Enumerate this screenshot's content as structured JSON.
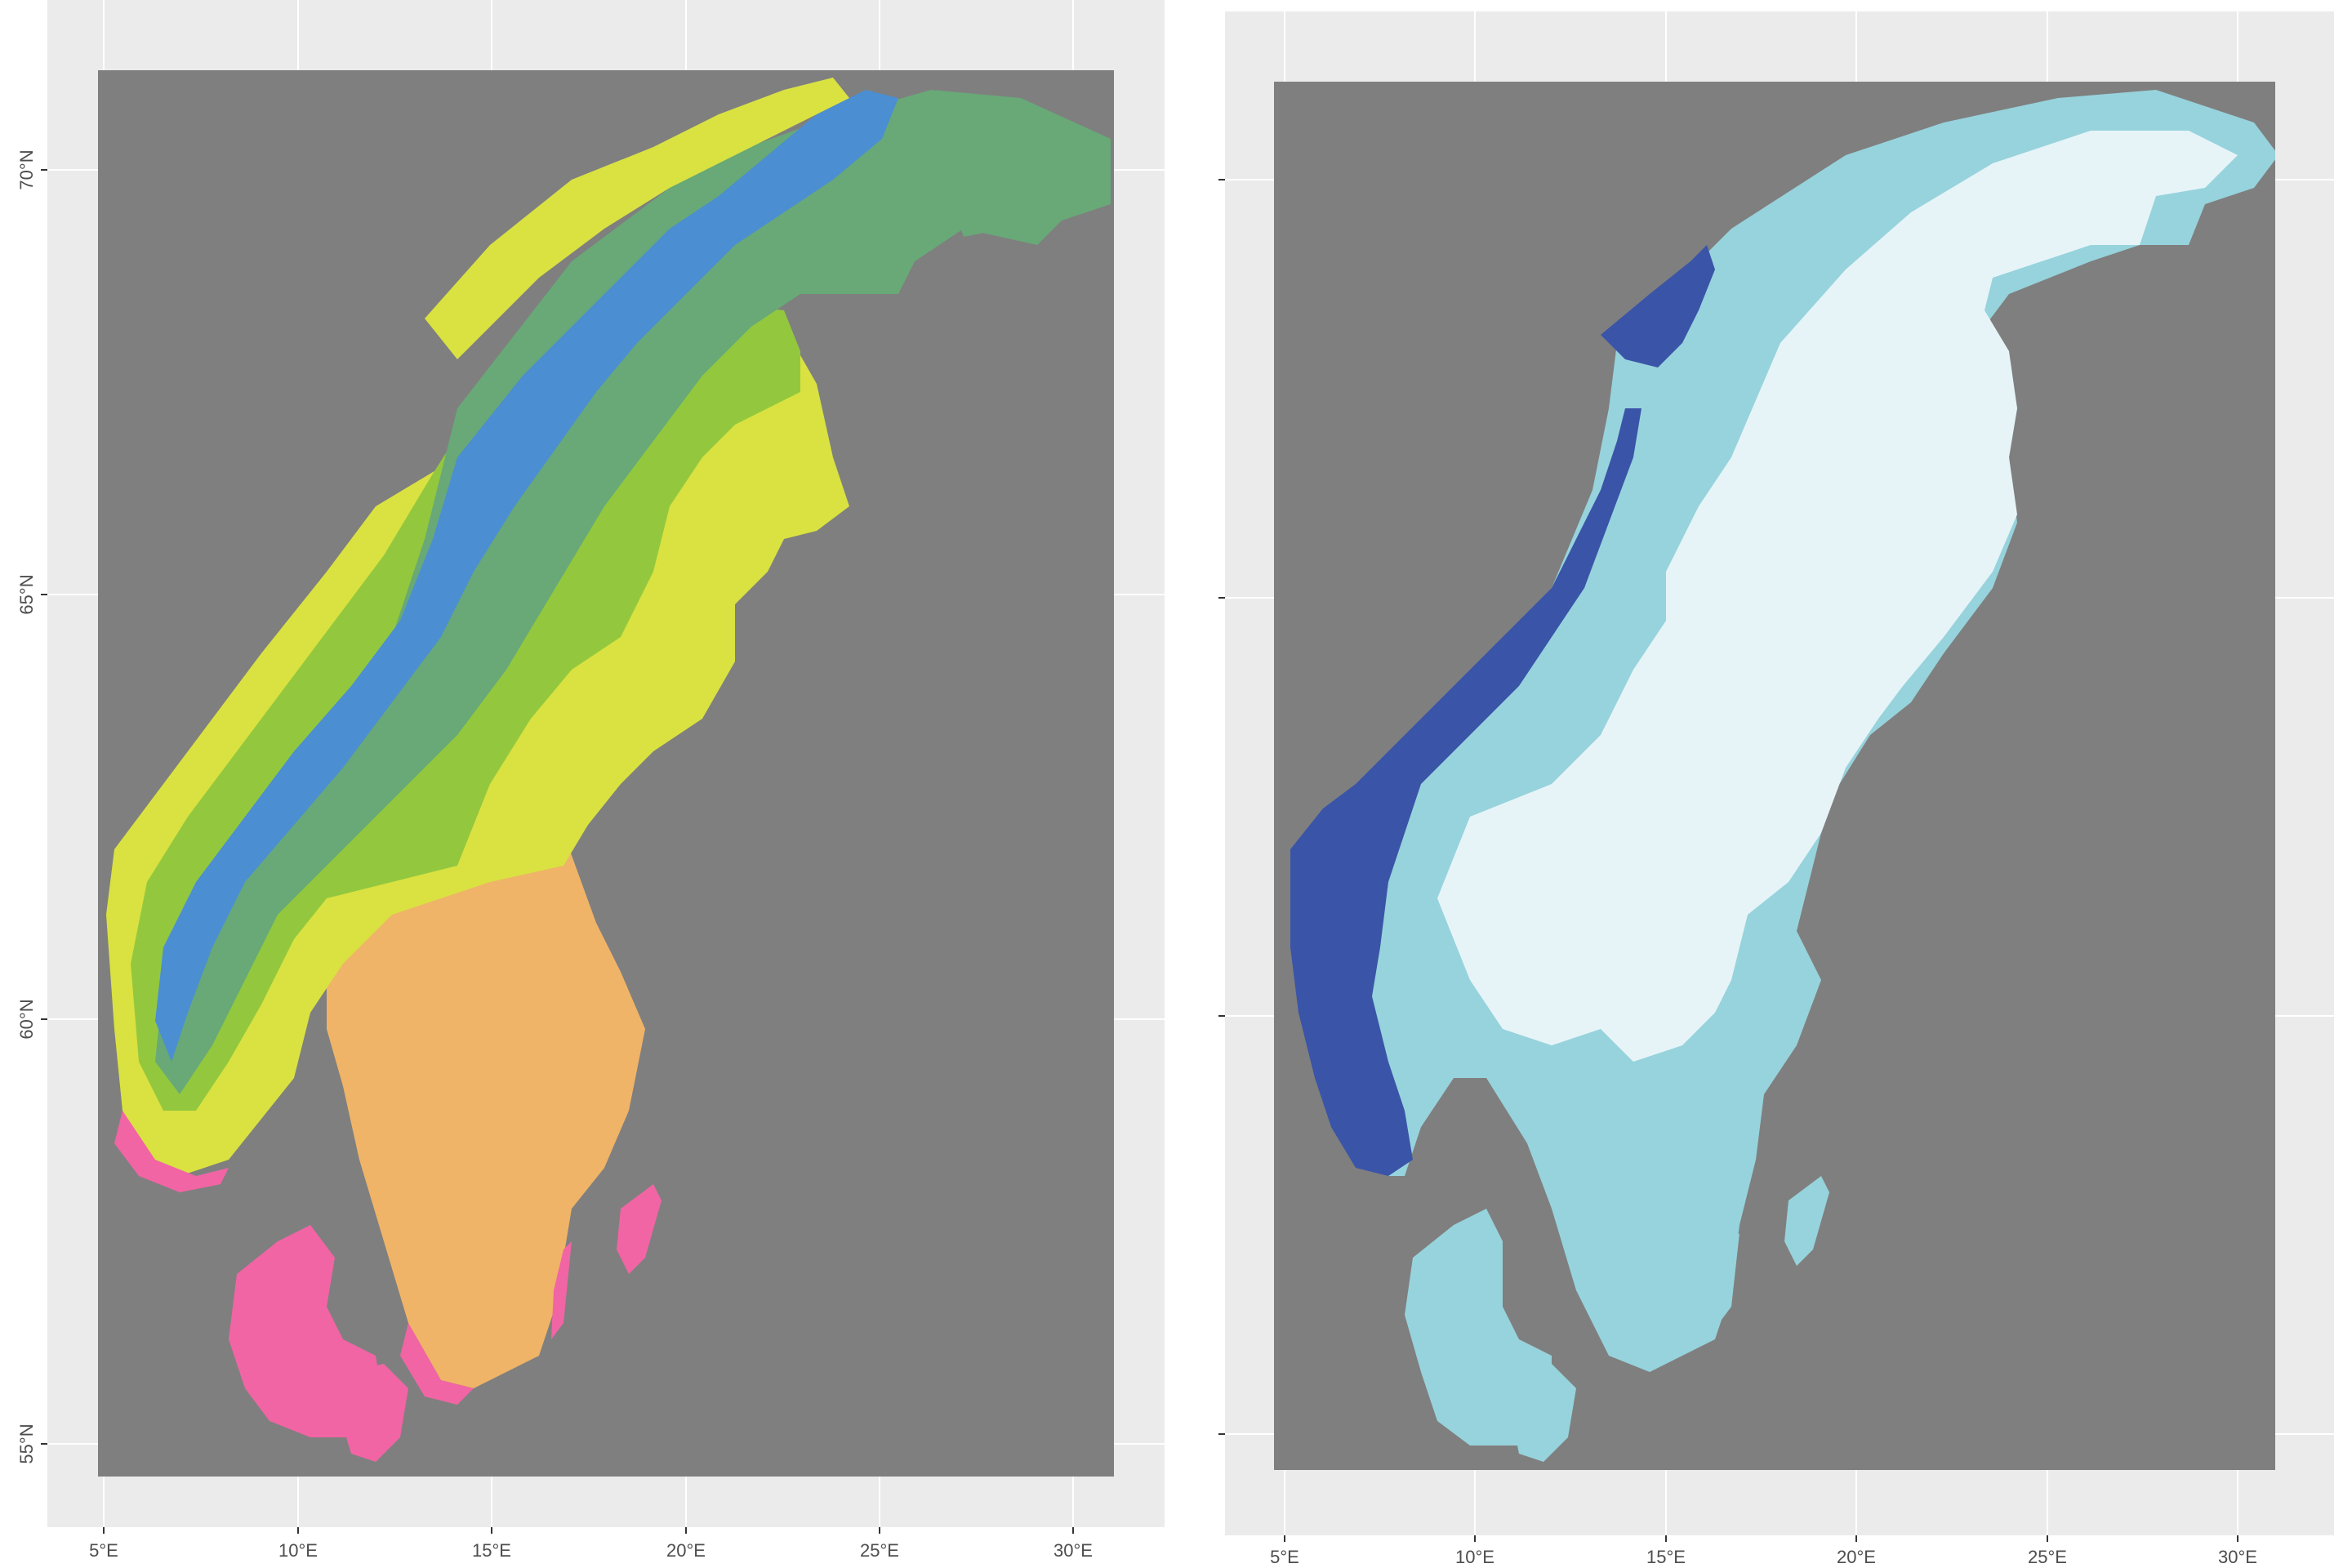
{
  "colors": {
    "panel_background": "#ebebeb",
    "grid_line": "#ffffff",
    "raster_na": "#7f7f7f",
    "axis_text": "#4d4d4d",
    "left_classes": [
      "#f165a4",
      "#efb467",
      "#d9e241",
      "#93c83e",
      "#68a977",
      "#4b8ed1"
    ],
    "right_classes": [
      "#e6f4f8",
      "#97d3dc",
      "#3a54a8"
    ]
  },
  "panels": [
    {
      "id": "left",
      "legend": "none",
      "x_ticks": [
        "5°E",
        "10°E",
        "15°E",
        "20°E",
        "25°E",
        "30°E"
      ],
      "y_ticks": [
        "55°N",
        "60°N",
        "65°N",
        "70°N"
      ],
      "show_y_labels": true,
      "color_scheme": "categorical climate-zone classes (pink, orange, yellow, light green, green, blue)"
    },
    {
      "id": "right",
      "legend": "none",
      "x_ticks": [
        "5°E",
        "10°E",
        "15°E",
        "20°E",
        "25°E",
        "30°E"
      ],
      "y_ticks": [
        "",
        "",
        "",
        ""
      ],
      "show_y_labels": false,
      "color_scheme": "three classes (very light cyan, light blue, dark blue)"
    }
  ]
}
